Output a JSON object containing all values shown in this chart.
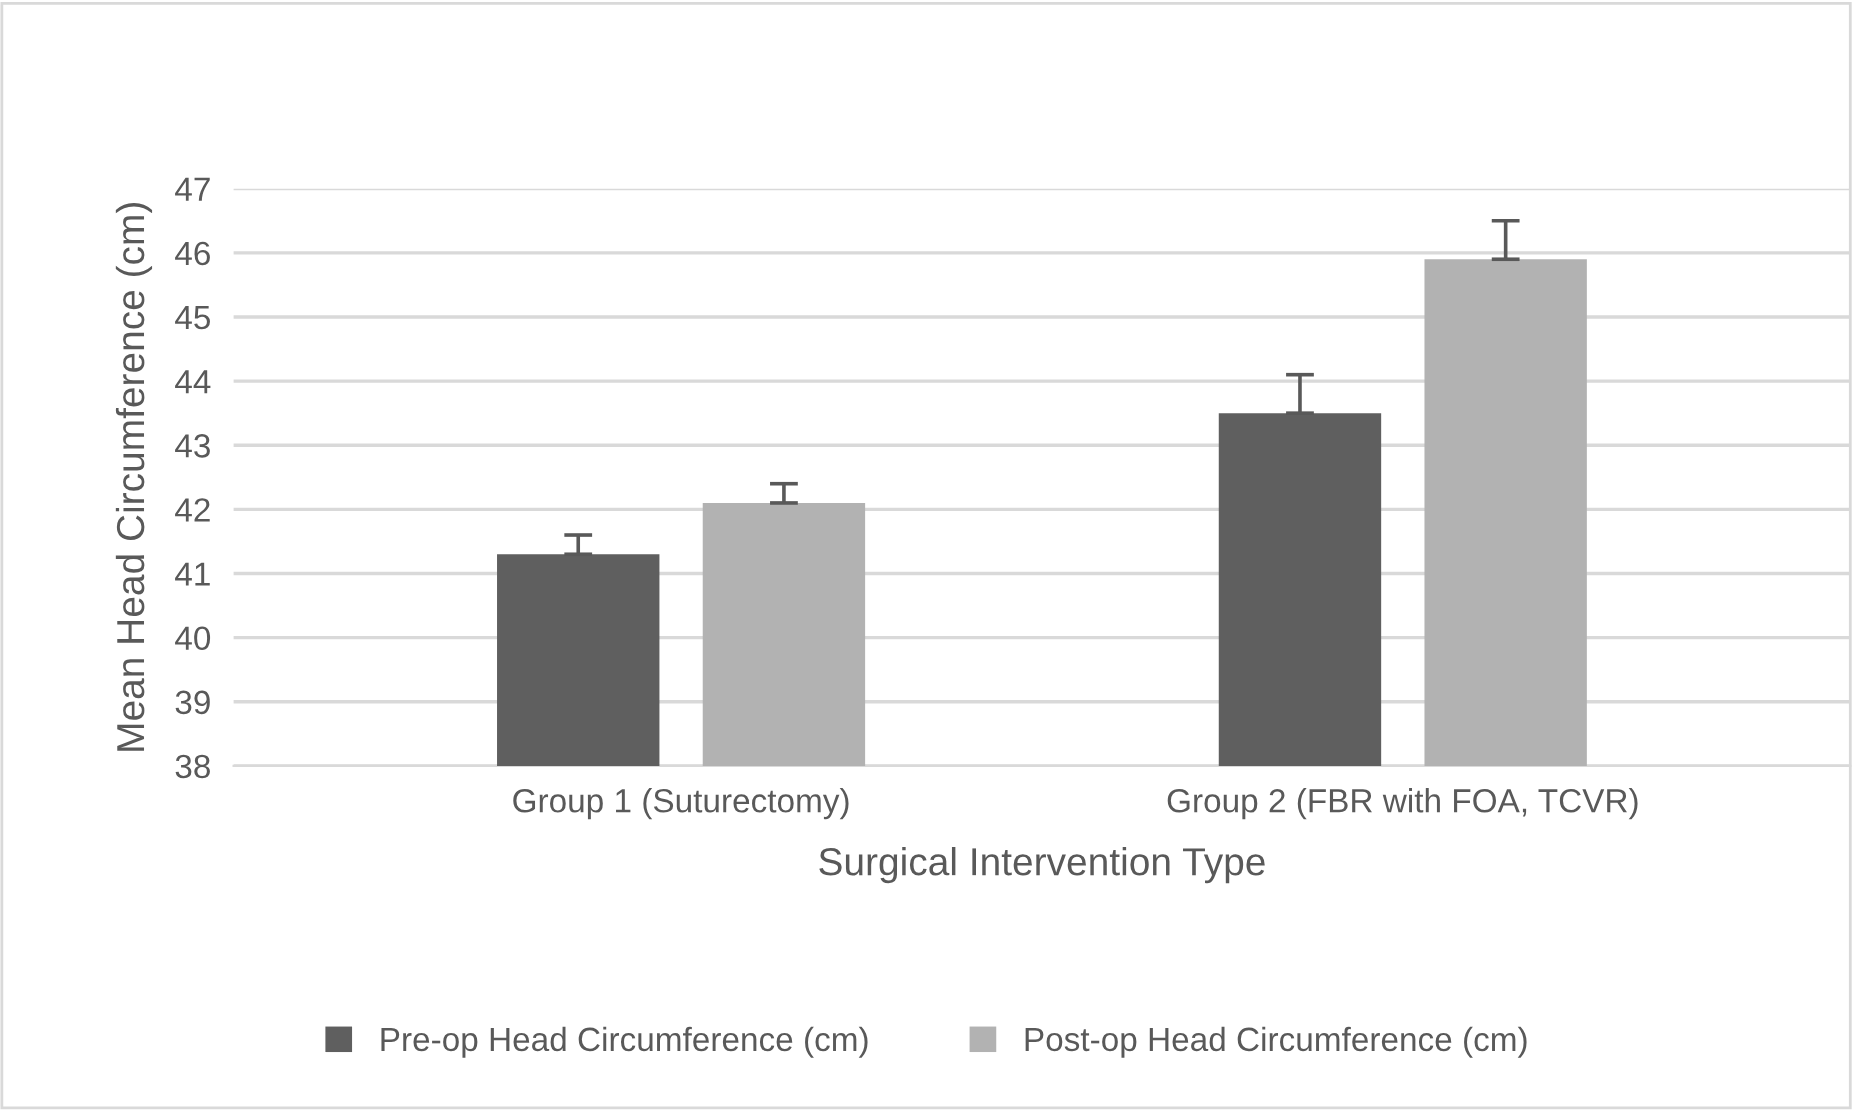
{
  "chart_data": {
    "type": "bar",
    "xlabel": "Surgical Intervention Type",
    "ylabel": "Mean Head Circumference (cm)",
    "categories": [
      "Group 1 (Suturectomy)",
      "Group 2 (FBR with FOA, TCVR)"
    ],
    "series": [
      {
        "name": "Pre-op Head Circumference (cm)",
        "color": "#5f5f5f",
        "values": [
          41.3,
          43.5
        ],
        "errors": [
          [
            41.3,
            41.6
          ],
          [
            43.5,
            44.1
          ]
        ]
      },
      {
        "name": "Post-op Head Circumference (cm)",
        "color": "#b2b2b2",
        "values": [
          42.1,
          45.9
        ],
        "errors": [
          [
            42.1,
            42.4
          ],
          [
            45.9,
            46.5
          ]
        ]
      }
    ],
    "ylim": [
      38,
      47
    ],
    "yticks": [
      38,
      39,
      40,
      41,
      42,
      43,
      44,
      45,
      46,
      47
    ],
    "grid": "y",
    "legend": "bottom"
  }
}
